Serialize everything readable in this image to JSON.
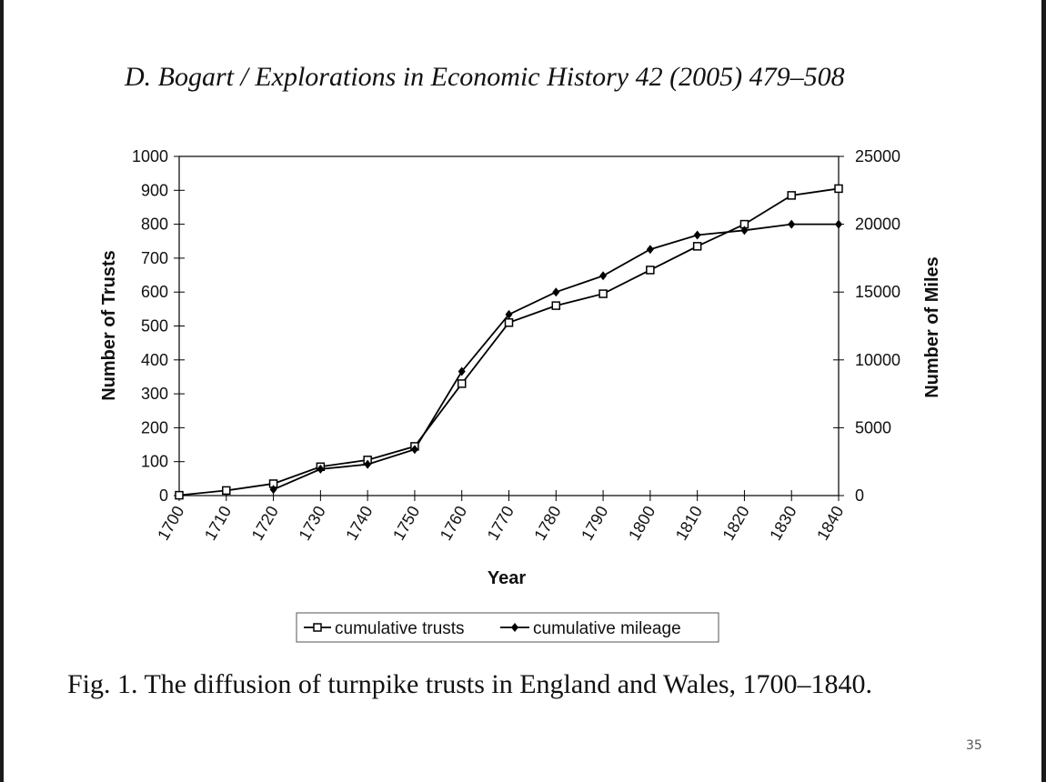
{
  "header": {
    "text": "D. Bogart / Explorations in Economic History 42 (2005) 479–508"
  },
  "caption": "Fig. 1. The diffusion of turnpike trusts in England and Wales, 1700–1840.",
  "page_number": "35",
  "colors": {
    "line": "#000000",
    "background": "#ffffff"
  },
  "chart_data": {
    "type": "line",
    "title": "",
    "xlabel": "Year",
    "ylabel": "Number of Trusts",
    "y2label": "Number of Miles",
    "xlim": [
      1700,
      1840
    ],
    "ylim": [
      0,
      1000
    ],
    "y2lim": [
      0,
      25000
    ],
    "x_ticks": [
      "1700",
      "1710",
      "1720",
      "1730",
      "1740",
      "1750",
      "1760",
      "1770",
      "1780",
      "1790",
      "1800",
      "1810",
      "1820",
      "1830",
      "1840"
    ],
    "y_ticks": [
      "0",
      "100",
      "200",
      "300",
      "400",
      "500",
      "600",
      "700",
      "800",
      "900",
      "1000"
    ],
    "y2_ticks": [
      "0",
      "5000",
      "10000",
      "15000",
      "20000",
      "25000"
    ],
    "grid": false,
    "legend_position": "bottom-center",
    "series": [
      {
        "name": "cumulative trusts",
        "marker": "open-square",
        "axis": "left",
        "x": [
          1700,
          1710,
          1720,
          1730,
          1740,
          1750,
          1760,
          1770,
          1780,
          1790,
          1800,
          1810,
          1820,
          1830,
          1840
        ],
        "values": [
          1,
          15,
          35,
          85,
          105,
          145,
          330,
          510,
          560,
          595,
          665,
          735,
          800,
          885,
          905
        ]
      },
      {
        "name": "cumulative mileage",
        "marker": "filled-diamond",
        "axis": "right",
        "x": [
          1720,
          1730,
          1740,
          1750,
          1760,
          1770,
          1780,
          1790,
          1800,
          1810,
          1820,
          1830,
          1840
        ],
        "values": [
          450,
          1950,
          2300,
          3400,
          9150,
          13350,
          15000,
          16200,
          18150,
          19200,
          19550,
          20000,
          20000
        ]
      }
    ]
  }
}
